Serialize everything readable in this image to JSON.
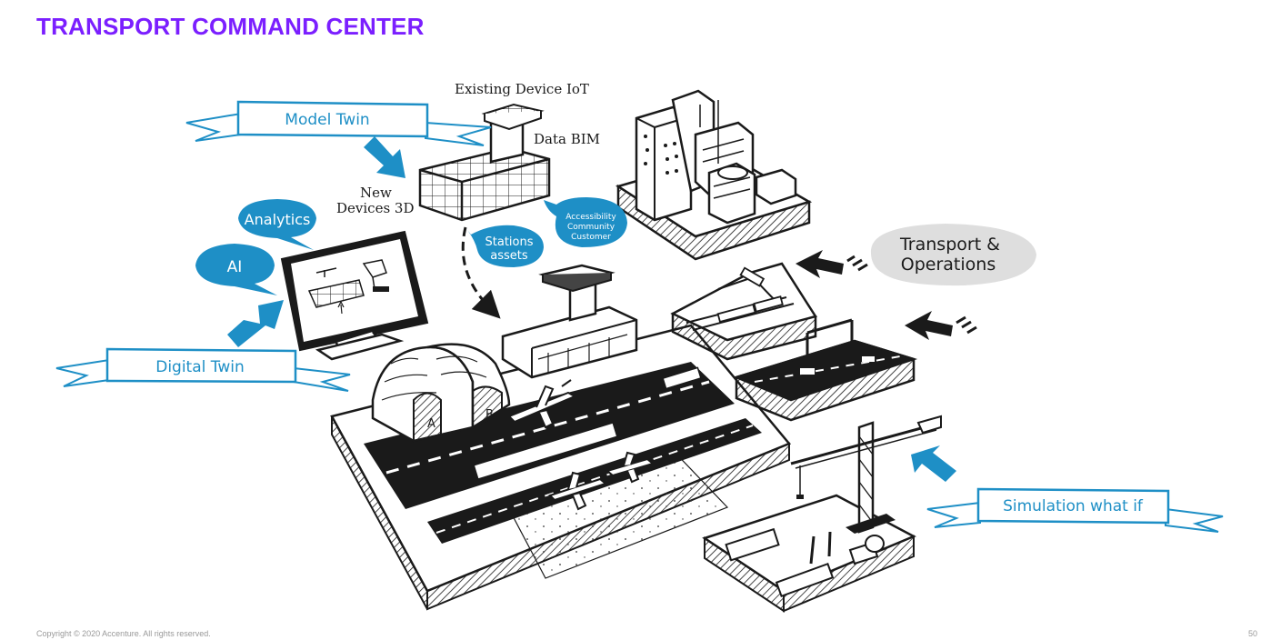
{
  "title": "TRANSPORT COMMAND CENTER",
  "labels": {
    "model_twin": "Model Twin",
    "digital_twin": "Digital Twin",
    "simulation": "Simulation what if",
    "transport_ops_line1": "Transport &",
    "transport_ops_line2": "Operations",
    "analytics": "Analytics",
    "ai": "AI",
    "stations_line1": "Stations",
    "stations_line2": "assets",
    "access_line1": "Accessibility",
    "access_line2": "Community",
    "access_line3": "Customer",
    "existing_iot": "Existing Device IoT",
    "data_bim": "Data BIM",
    "new_devices_line1": "New",
    "new_devices_line2": "Devices 3D",
    "hangar_a": "A",
    "hangar_b": "B"
  },
  "footer": "Copyright © 2020 Accenture. All rights reserved.",
  "page_number": "50",
  "colors": {
    "title": "#7b1fff",
    "accent_blue": "#1e8fc6",
    "ink": "#1a1a1a",
    "bubble_gray": "#dedede"
  }
}
